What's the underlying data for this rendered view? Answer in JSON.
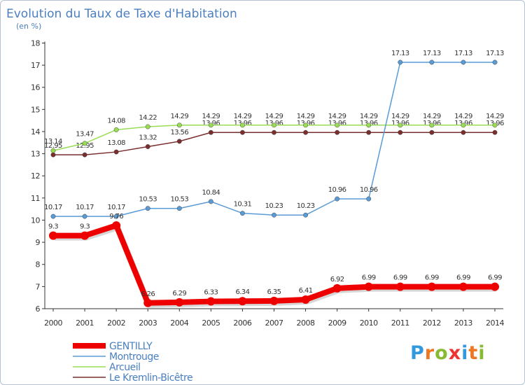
{
  "chart_data": {
    "type": "line",
    "title": "Evolution du Taux de Taxe d'Habitation",
    "subtitle": "(en %)",
    "x": [
      "2000",
      "2001",
      "2002",
      "2003",
      "2004",
      "2005",
      "2006",
      "2007",
      "2008",
      "2009",
      "2010",
      "2011",
      "2012",
      "2013",
      "2014"
    ],
    "ylim": [
      6,
      18
    ],
    "yticks": [
      6,
      7,
      8,
      9,
      10,
      11,
      12,
      13,
      14,
      15,
      16,
      17,
      18
    ],
    "grid": false,
    "legend_position": "bottom-left",
    "series": [
      {
        "name": "GENTILLY",
        "color": "#ee0000",
        "values": [
          9.3,
          9.3,
          9.76,
          6.26,
          6.29,
          6.33,
          6.34,
          6.35,
          6.41,
          6.92,
          6.99,
          6.99,
          6.99,
          6.99,
          6.99
        ],
        "labels": [
          "9.3",
          "9.3",
          "9.76",
          "6.26",
          "6.29",
          "6.33",
          "6.34",
          "6.35",
          "6.41",
          "6.92",
          "6.99",
          "6.99",
          "6.99",
          "6.99",
          "6.99"
        ]
      },
      {
        "name": "Montrouge",
        "color": "#5b9bd5",
        "values": [
          10.17,
          10.17,
          10.17,
          10.53,
          10.53,
          10.84,
          10.31,
          10.23,
          10.23,
          10.96,
          10.96,
          17.13,
          17.13,
          17.13,
          17.13
        ],
        "labels": [
          "10.17",
          "10.17",
          "10.17",
          "10.53",
          "10.53",
          "10.84",
          "10.31",
          "10.23",
          "10.23",
          "10.96",
          "10.96",
          "17.13",
          "17.13",
          "17.13",
          "17.13"
        ]
      },
      {
        "name": "Arcueil",
        "color": "#99dd55",
        "values": [
          13.14,
          13.47,
          14.08,
          14.22,
          14.29,
          14.29,
          14.29,
          14.29,
          14.29,
          14.29,
          14.29,
          14.29,
          14.29,
          14.29,
          14.29
        ],
        "labels": [
          "13.14",
          "13.47",
          "14.08",
          "14.22",
          "14.29",
          "14.29",
          "14.29",
          "14.29",
          "14.29",
          "14.29",
          "14.29",
          "14.29",
          "14.29",
          "14.29",
          "14.29"
        ]
      },
      {
        "name": "Le Kremlin-Bicêtre",
        "color": "#7a2e2e",
        "values": [
          12.95,
          12.95,
          13.08,
          13.32,
          13.56,
          13.96,
          13.96,
          13.96,
          13.96,
          13.96,
          13.96,
          13.96,
          13.96,
          13.96,
          13.96
        ],
        "labels": [
          "12.95",
          "12.95",
          "13.08",
          "13.32",
          "13.56",
          "13.96",
          "13.96",
          "13.96",
          "13.96",
          "13.96",
          "13.96",
          "13.96",
          "13.96",
          "13.96",
          "13.96"
        ]
      }
    ]
  },
  "logo": {
    "letters": [
      "P",
      "r",
      "o",
      "x",
      "i",
      "t",
      "i"
    ],
    "colors": [
      "#3399dd",
      "#ee7722",
      "#88bb33",
      "#ee3333",
      "#3399dd",
      "#ee7722",
      "#88bb33"
    ]
  }
}
